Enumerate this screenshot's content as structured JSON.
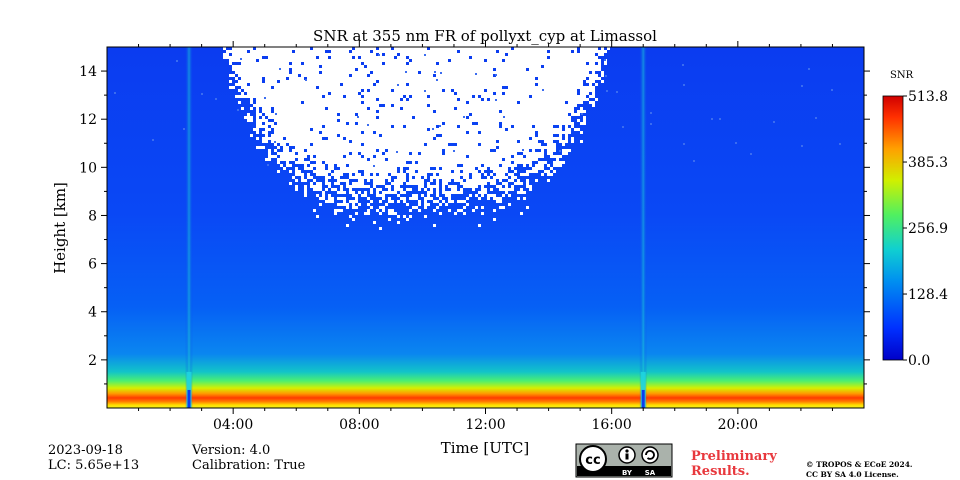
{
  "chart_data": {
    "type": "heatmap",
    "title": "SNR at 355 nm FR of pollyxt_cyp at Limassol",
    "xlabel": "Time [UTC]",
    "ylabel": "Height [km]",
    "xlim_hours": [
      0,
      24
    ],
    "ylim_km": [
      0,
      15
    ],
    "x_ticks": [
      "04:00",
      "08:00",
      "12:00",
      "16:00",
      "20:00"
    ],
    "x_tick_hours": [
      4,
      8,
      12,
      16,
      20
    ],
    "y_ticks": [
      2,
      4,
      6,
      8,
      10,
      12,
      14
    ],
    "colorbar": {
      "label": "SNR",
      "min": 0.0,
      "max": 513.8,
      "ticks": [
        "0.0",
        "128.4",
        "256.9",
        "385.3",
        "513.8"
      ],
      "tick_values": [
        0.0,
        128.4,
        256.9,
        385.3,
        513.8
      ],
      "colormap": "jet"
    },
    "features": {
      "near_surface_max_band_km": [
        0.2,
        0.6
      ],
      "daytime_noise_region_hours": [
        3.5,
        16.0
      ],
      "daytime_noise_lowest_km": 7.8,
      "gaps_hours": [
        2.6,
        17.0
      ]
    },
    "grid": false
  },
  "info": {
    "date": "2023-09-18",
    "lc": "LC: 5.65e+13",
    "version": "Version: 4.0",
    "calibration": "Calibration: True"
  },
  "footer": {
    "preliminary_line1": "Preliminary",
    "preliminary_line2": "Results.",
    "copyright_line1": "© TROPOS & ECoE 2024.",
    "copyright_line2": "CC BY SA 4.0 License.",
    "license_badge_text": [
      "BY",
      "SA"
    ],
    "license_badge_icon": "cc-by-sa-icon"
  }
}
